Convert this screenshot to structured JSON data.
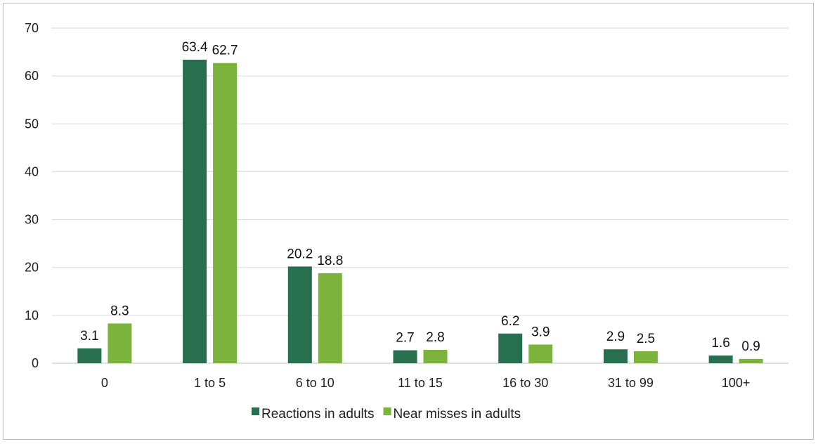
{
  "chart_data": {
    "type": "bar",
    "categories": [
      "0",
      "1 to 5",
      "6 to 10",
      "11 to 15",
      "16 to 30",
      "31 to 99",
      "100+"
    ],
    "series": [
      {
        "name": "Reactions in adults",
        "color": "#276f4f",
        "values": [
          3.1,
          63.4,
          20.2,
          2.7,
          6.2,
          2.9,
          1.6
        ]
      },
      {
        "name": "Near misses in adults",
        "color": "#7bb33c",
        "values": [
          8.3,
          62.7,
          18.8,
          2.8,
          3.9,
          2.5,
          0.9
        ]
      }
    ],
    "ylim": [
      0,
      70
    ],
    "yticks": [
      0,
      10,
      20,
      30,
      40,
      50,
      60,
      70
    ],
    "grid": true,
    "legend_position": "bottom"
  }
}
